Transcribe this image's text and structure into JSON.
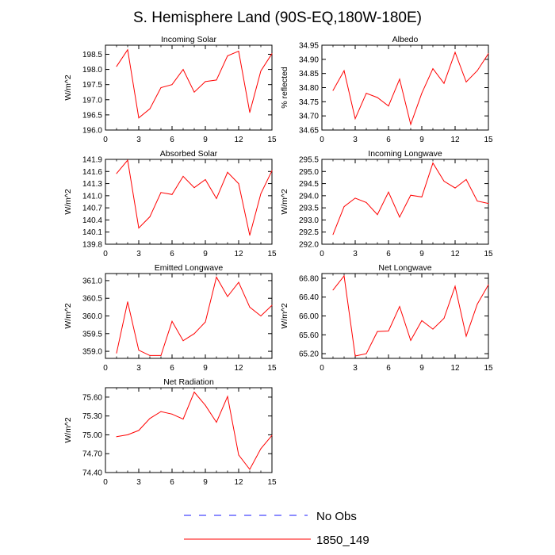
{
  "figure": {
    "title": "S. Hemisphere Land (90S-EQ,180W-180E)"
  },
  "legend": [
    {
      "label": "No Obs",
      "color": "#1a1aff",
      "dash": true
    },
    {
      "label": "1850_149",
      "color": "#ff0000",
      "dash": false
    }
  ],
  "chart_data": [
    {
      "type": "line",
      "title": "Incoming Solar",
      "ylabel": "W/m^2",
      "xlabel": "",
      "xlim": [
        0,
        15
      ],
      "ylim": [
        196.0,
        198.8
      ],
      "xticks": [
        0,
        3,
        6,
        9,
        12,
        15
      ],
      "yticks": [
        "196.0",
        "196.5",
        "197.0",
        "197.5",
        "198.0",
        "198.5"
      ],
      "series": [
        {
          "name": "1850_149",
          "color": "#ff0000",
          "x": [
            1,
            2,
            3,
            4,
            5,
            6,
            7,
            8,
            9,
            10,
            11,
            12,
            13,
            14,
            15
          ],
          "values": [
            198.1,
            198.65,
            196.4,
            196.7,
            197.4,
            197.5,
            198.0,
            197.25,
            197.6,
            197.65,
            198.45,
            198.6,
            196.58,
            197.95,
            198.52
          ]
        }
      ]
    },
    {
      "type": "line",
      "title": "Albedo",
      "ylabel": "% reflected",
      "xlabel": "",
      "xlim": [
        0,
        15
      ],
      "ylim": [
        34.65,
        34.95
      ],
      "xticks": [
        0,
        3,
        6,
        9,
        12,
        15
      ],
      "yticks": [
        "34.65",
        "34.70",
        "34.75",
        "34.80",
        "34.85",
        "34.90",
        "34.95"
      ],
      "series": [
        {
          "name": "1850_149",
          "color": "#ff0000",
          "x": [
            1,
            2,
            3,
            4,
            5,
            6,
            7,
            8,
            9,
            10,
            11,
            12,
            13,
            14,
            15
          ],
          "values": [
            34.79,
            34.86,
            34.69,
            34.78,
            34.765,
            34.735,
            34.83,
            34.67,
            34.78,
            34.867,
            34.815,
            34.925,
            34.82,
            34.86,
            34.92
          ]
        }
      ]
    },
    {
      "type": "line",
      "title": "Absorbed Solar",
      "ylabel": "W/m^2",
      "xlabel": "",
      "xlim": [
        0,
        15
      ],
      "ylim": [
        139.8,
        141.9
      ],
      "xticks": [
        0,
        3,
        6,
        9,
        12,
        15
      ],
      "yticks": [
        "139.8",
        "140.1",
        "140.4",
        "140.7",
        "141.0",
        "141.3",
        "141.6",
        "141.9"
      ],
      "series": [
        {
          "name": "1850_149",
          "color": "#ff0000",
          "x": [
            1,
            2,
            3,
            4,
            5,
            6,
            7,
            8,
            9,
            10,
            11,
            12,
            13,
            14,
            15
          ],
          "values": [
            141.55,
            141.88,
            140.2,
            140.48,
            141.08,
            141.03,
            141.48,
            141.2,
            141.4,
            140.93,
            141.58,
            141.3,
            140.02,
            141.05,
            141.62
          ]
        }
      ]
    },
    {
      "type": "line",
      "title": "Incoming Longwave",
      "ylabel": "W/m^2",
      "xlabel": "",
      "xlim": [
        0,
        15
      ],
      "ylim": [
        292.0,
        295.5
      ],
      "xticks": [
        0,
        3,
        6,
        9,
        12,
        15
      ],
      "yticks": [
        "292.0",
        "292.5",
        "293.0",
        "293.5",
        "294.0",
        "294.5",
        "295.0",
        "295.5"
      ],
      "series": [
        {
          "name": "1850_149",
          "color": "#ff0000",
          "x": [
            1,
            2,
            3,
            4,
            5,
            6,
            7,
            8,
            9,
            10,
            11,
            12,
            13,
            14,
            15
          ],
          "values": [
            292.4,
            293.55,
            293.9,
            293.72,
            293.22,
            294.15,
            293.12,
            294.02,
            293.95,
            295.35,
            294.6,
            294.32,
            294.67,
            293.78,
            293.68
          ]
        }
      ]
    },
    {
      "type": "line",
      "title": "Emitted Longwave",
      "ylabel": "W/m^2",
      "xlabel": "",
      "xlim": [
        0,
        15
      ],
      "ylim": [
        358.8,
        361.2
      ],
      "xticks": [
        0,
        3,
        6,
        9,
        12,
        15
      ],
      "yticks": [
        "359.0",
        "359.5",
        "360.0",
        "360.5",
        "361.0"
      ],
      "series": [
        {
          "name": "1850_149",
          "color": "#ff0000",
          "x": [
            1,
            2,
            3,
            4,
            5,
            6,
            7,
            8,
            9,
            10,
            11,
            12,
            13,
            14,
            15
          ],
          "values": [
            358.95,
            360.4,
            359.03,
            358.88,
            358.88,
            359.85,
            359.3,
            359.5,
            359.83,
            361.1,
            360.55,
            360.95,
            360.25,
            360.0,
            360.3
          ]
        }
      ]
    },
    {
      "type": "line",
      "title": "Net Longwave",
      "ylabel": "W/m^2",
      "xlabel": "",
      "xlim": [
        0,
        15
      ],
      "ylim": [
        65.1,
        66.9
      ],
      "xticks": [
        0,
        3,
        6,
        9,
        12,
        15
      ],
      "yticks": [
        "65.20",
        "65.60",
        "66.00",
        "66.40",
        "66.80"
      ],
      "series": [
        {
          "name": "1850_149",
          "color": "#ff0000",
          "x": [
            1,
            2,
            3,
            4,
            5,
            6,
            7,
            8,
            9,
            10,
            11,
            12,
            13,
            14,
            15
          ],
          "values": [
            66.55,
            66.85,
            65.15,
            65.2,
            65.67,
            65.68,
            66.2,
            65.48,
            65.9,
            65.72,
            65.95,
            66.63,
            65.57,
            66.25,
            66.66
          ]
        }
      ]
    },
    {
      "type": "line",
      "title": "Net Radiation",
      "ylabel": "W/m^2",
      "xlabel": "",
      "xlim": [
        0,
        15
      ],
      "ylim": [
        74.4,
        75.75
      ],
      "xticks": [
        0,
        3,
        6,
        9,
        12,
        15
      ],
      "yticks": [
        "74.40",
        "74.70",
        "75.00",
        "75.30",
        "75.60"
      ],
      "series": [
        {
          "name": "1850_149",
          "color": "#ff0000",
          "x": [
            1,
            2,
            3,
            4,
            5,
            6,
            7,
            8,
            9,
            10,
            11,
            12,
            13,
            14,
            15
          ],
          "values": [
            74.97,
            75.0,
            75.07,
            75.26,
            75.37,
            75.33,
            75.25,
            75.68,
            75.47,
            75.2,
            75.61,
            74.68,
            74.45,
            74.78,
            74.99
          ]
        }
      ]
    }
  ]
}
